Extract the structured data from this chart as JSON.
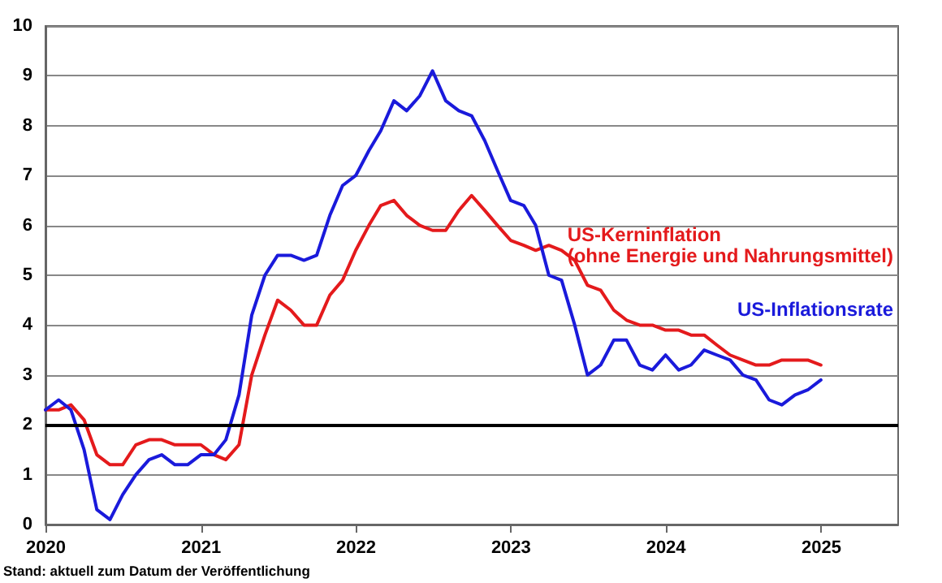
{
  "chart_data": {
    "type": "line",
    "x": [
      "2019-12-31",
      "2020-01-31",
      "2020-02-29",
      "2020-03-31",
      "2020-04-30",
      "2020-05-31",
      "2020-06-30",
      "2020-07-31",
      "2020-08-31",
      "2020-09-30",
      "2020-10-31",
      "2020-11-30",
      "2020-12-31",
      "2021-01-31",
      "2021-02-28",
      "2021-03-31",
      "2021-04-30",
      "2021-05-31",
      "2021-06-30",
      "2021-07-31",
      "2021-08-31",
      "2021-09-30",
      "2021-10-31",
      "2021-11-30",
      "2021-12-31",
      "2022-01-31",
      "2022-02-28",
      "2022-03-31",
      "2022-04-30",
      "2022-05-31",
      "2022-06-30",
      "2022-07-31",
      "2022-08-31",
      "2022-09-30",
      "2022-10-31",
      "2022-11-30",
      "2022-12-31",
      "2023-01-31",
      "2023-02-28",
      "2023-03-31",
      "2023-04-30",
      "2023-05-31",
      "2023-06-30",
      "2023-07-31",
      "2023-08-31",
      "2023-09-30",
      "2023-10-31",
      "2023-11-30",
      "2023-12-31",
      "2024-01-31",
      "2024-02-29",
      "2024-03-31",
      "2024-04-30",
      "2024-05-31",
      "2024-06-30",
      "2024-07-31",
      "2024-08-31",
      "2024-09-30",
      "2024-10-31",
      "2024-11-30",
      "2024-12-31"
    ],
    "series": [
      {
        "name": "US-Kerninflation\n(ohne Energie und Nahrungsmittel)",
        "color": "#e41a1c",
        "values": [
          2.3,
          2.3,
          2.4,
          2.1,
          1.4,
          1.2,
          1.2,
          1.6,
          1.7,
          1.7,
          1.6,
          1.6,
          1.6,
          1.4,
          1.3,
          1.6,
          3.0,
          3.8,
          4.5,
          4.3,
          4.0,
          4.0,
          4.6,
          4.9,
          5.5,
          6.0,
          6.4,
          6.5,
          6.2,
          6.0,
          5.9,
          5.9,
          6.3,
          6.6,
          6.3,
          6.0,
          5.7,
          5.6,
          5.5,
          5.6,
          5.5,
          5.3,
          4.8,
          4.7,
          4.3,
          4.1,
          4.0,
          4.0,
          3.9,
          3.9,
          3.8,
          3.8,
          3.6,
          3.4,
          3.3,
          3.2,
          3.2,
          3.3,
          3.3,
          3.3,
          3.2
        ]
      },
      {
        "name": "US-Inflationsrate",
        "color": "#1a1adb",
        "values": [
          2.3,
          2.5,
          2.3,
          1.5,
          0.3,
          0.1,
          0.6,
          1.0,
          1.3,
          1.4,
          1.2,
          1.2,
          1.4,
          1.4,
          1.7,
          2.6,
          4.2,
          5.0,
          5.4,
          5.4,
          5.3,
          5.4,
          6.2,
          6.8,
          7.0,
          7.5,
          7.9,
          8.5,
          8.3,
          8.6,
          9.1,
          8.5,
          8.3,
          8.2,
          7.7,
          7.1,
          6.5,
          6.4,
          6.0,
          5.0,
          4.9,
          4.0,
          3.0,
          3.2,
          3.7,
          3.7,
          3.2,
          3.1,
          3.4,
          3.1,
          3.2,
          3.5,
          3.4,
          3.3,
          3.0,
          2.9,
          2.5,
          2.4,
          2.6,
          2.7,
          2.9
        ]
      }
    ],
    "xlim": [
      "2019-12-31",
      "2025-07-01"
    ],
    "xticks": [
      "2020",
      "2021",
      "2022",
      "2023",
      "2024",
      "2025"
    ],
    "ylim": [
      0,
      10
    ],
    "yticks": [
      0,
      1,
      2,
      3,
      4,
      5,
      6,
      7,
      8,
      9,
      10
    ],
    "grid": "y",
    "legend": false,
    "marker": "none",
    "line_style": "solid",
    "ref_lines": [
      {
        "axis": "y",
        "value": 2,
        "color": "#000000"
      }
    ],
    "annotations": [
      "Stand: aktuell zum Datum der Veröffentlichung"
    ]
  }
}
